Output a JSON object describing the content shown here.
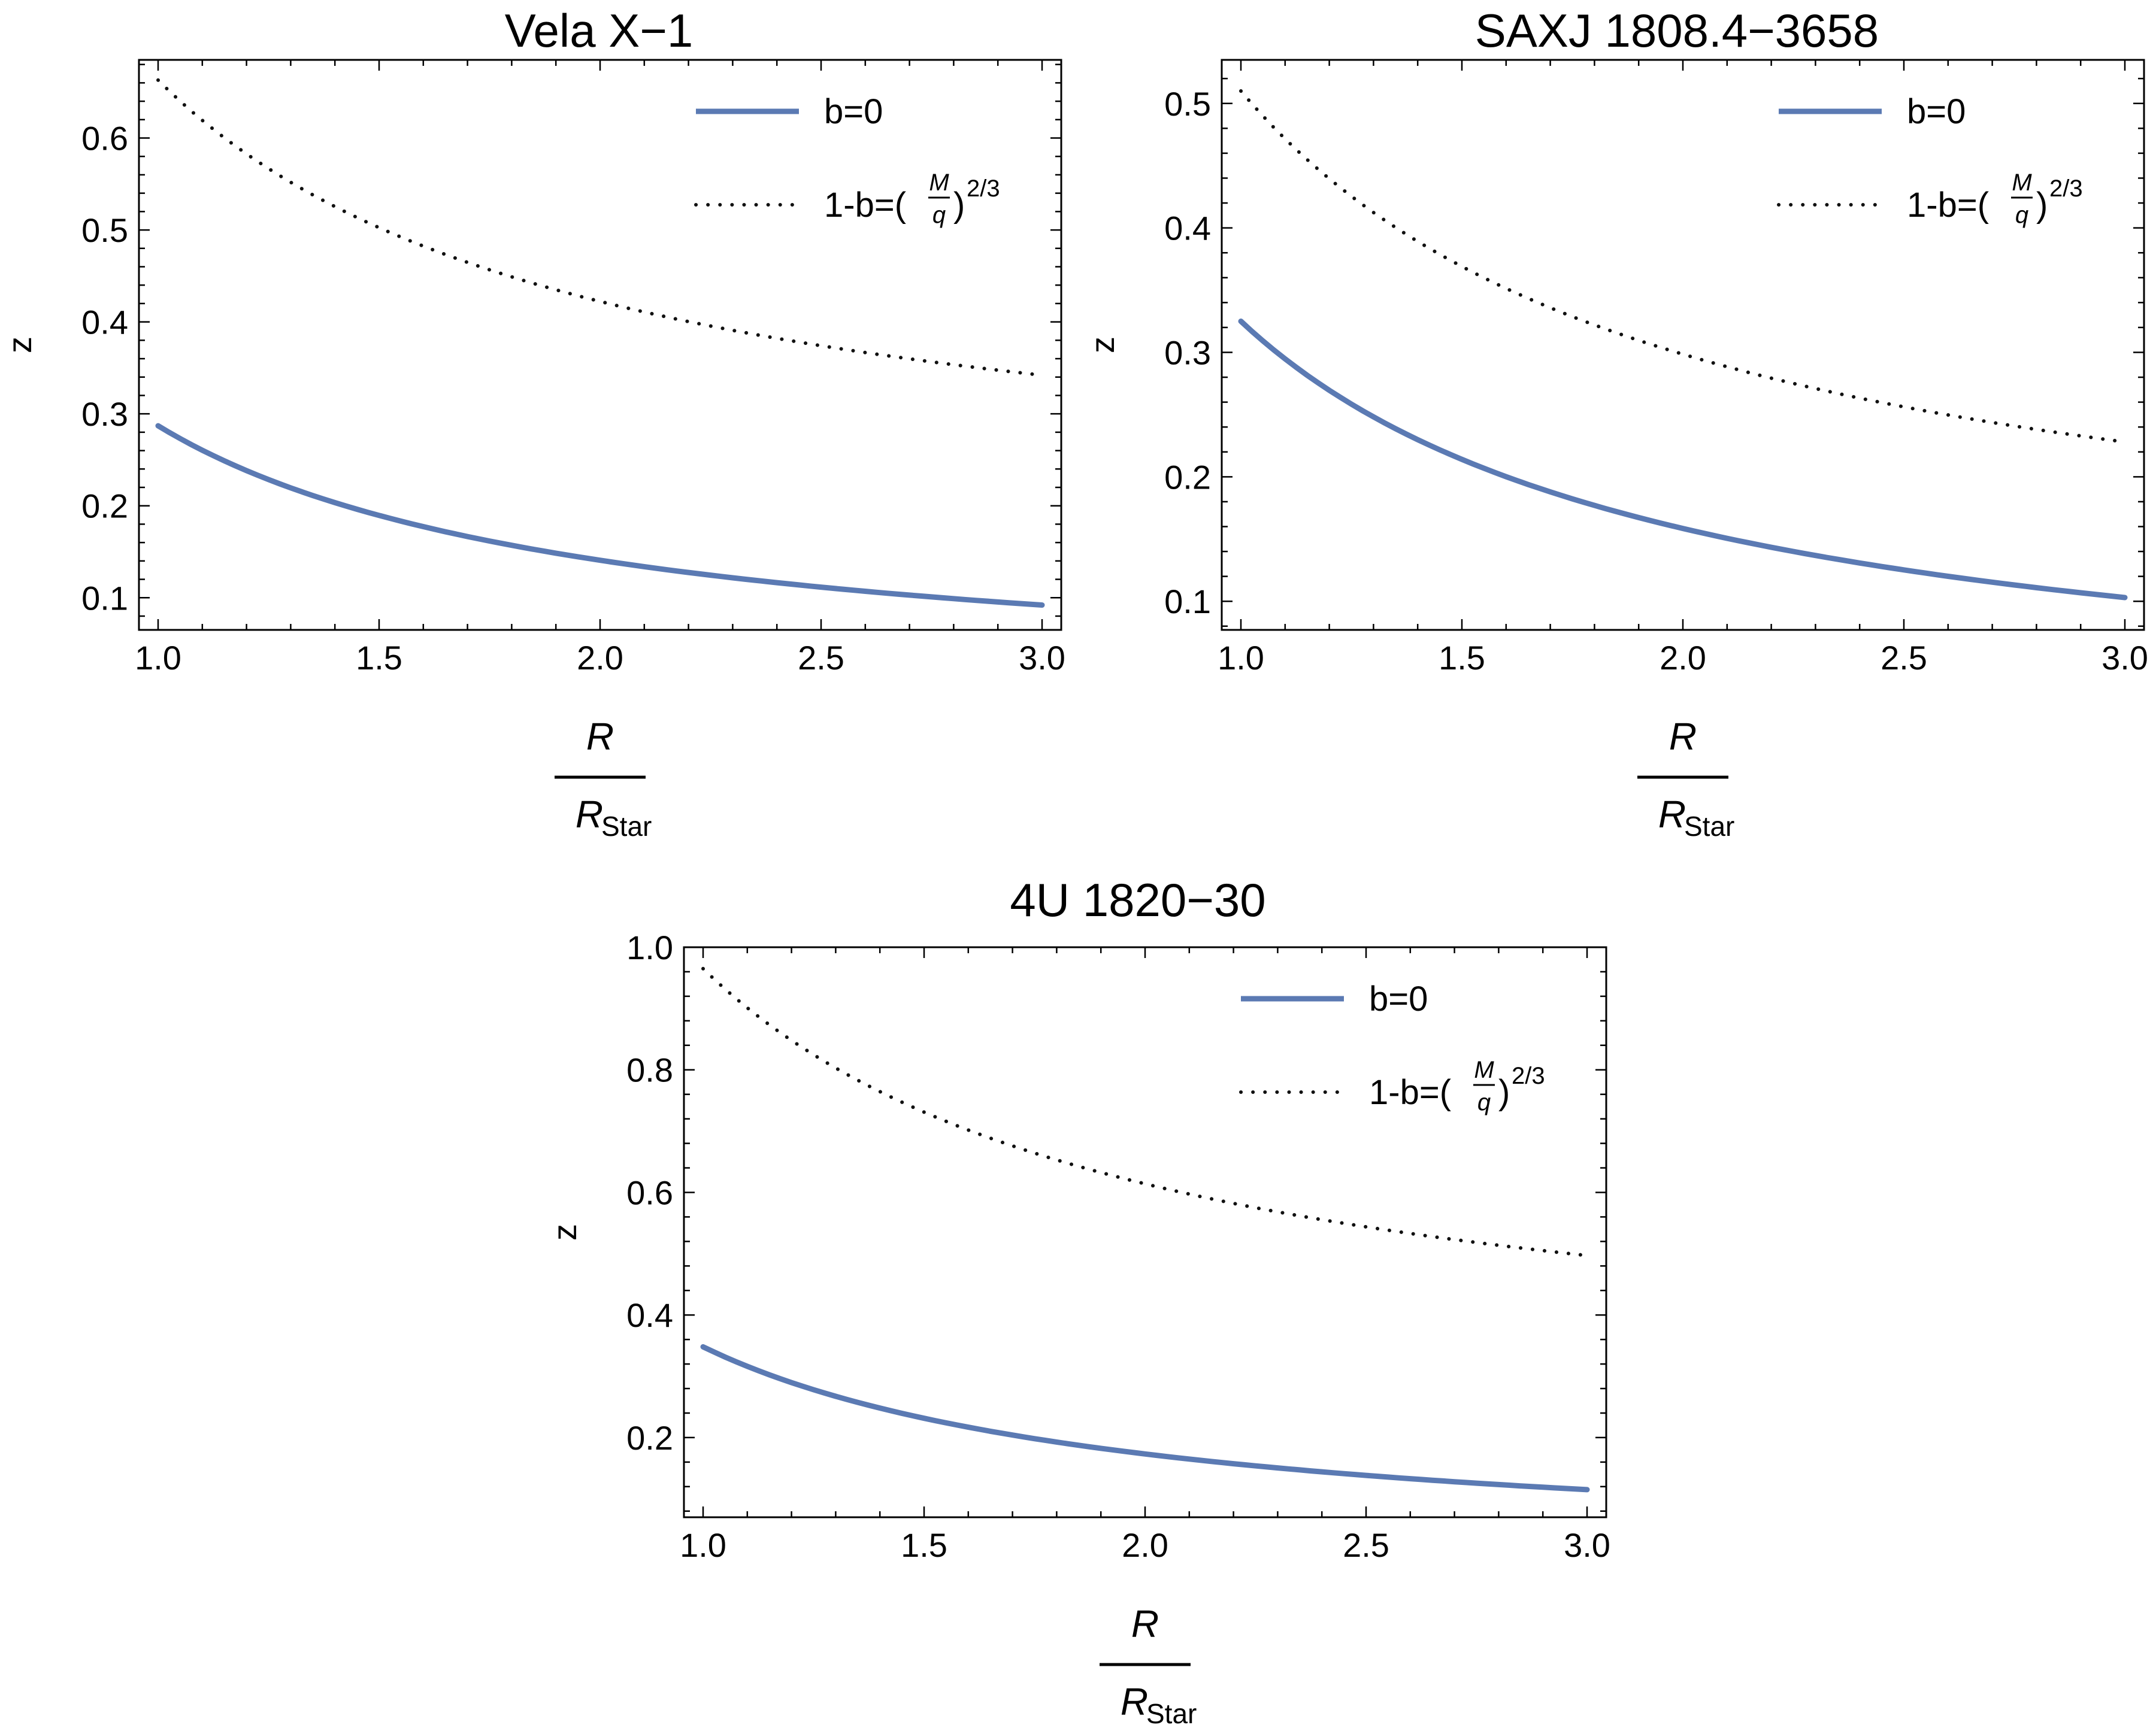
{
  "colors": {
    "solid": "#5b7ab3",
    "dotted": "#111111",
    "axis": "#000000"
  },
  "legend": {
    "solid_label": "b=0",
    "dotted_prefix": "1-b=(",
    "frac_num": "M",
    "frac_den": "q",
    "dotted_suffix": ")",
    "exponent": "2/3"
  },
  "xlabel": {
    "numerator": "R",
    "denominator": "R",
    "subscript": "Star"
  },
  "ylabel": "z",
  "chart_data": [
    {
      "type": "line",
      "title": "Vela X−1",
      "xlim": [
        1.0,
        3.0
      ],
      "ylim": [
        0.065,
        0.685
      ],
      "xticks": [
        "1.0",
        "1.5",
        "2.0",
        "2.5",
        "3.0"
      ],
      "yticks": [
        "0.1",
        "0.2",
        "0.3",
        "0.4",
        "0.5",
        "0.6"
      ],
      "legend_position": "top-right",
      "x": [
        1.0,
        1.5,
        2.0,
        2.5,
        3.0
      ],
      "series": [
        {
          "label": "b=0",
          "style": "solid",
          "y": [
            0.287,
            0.19,
            0.143,
            0.113,
            0.092
          ]
        },
        {
          "label": "1-b=(M/q)^(2/3)",
          "style": "dotted",
          "y": [
            0.663,
            0.498,
            0.418,
            0.372,
            0.342
          ]
        }
      ]
    },
    {
      "type": "line",
      "title": "SAXJ 1808.4−3658",
      "xlim": [
        1.0,
        3.0
      ],
      "ylim": [
        0.077,
        0.535
      ],
      "xticks": [
        "1.0",
        "1.5",
        "2.0",
        "2.5",
        "3.0"
      ],
      "yticks": [
        "0.1",
        "0.2",
        "0.3",
        "0.4",
        "0.5"
      ],
      "legend_position": "top-right",
      "x": [
        1.0,
        1.5,
        2.0,
        2.5,
        3.0
      ],
      "series": [
        {
          "label": "b=0",
          "style": "solid",
          "y": [
            0.325,
            0.21,
            0.155,
            0.124,
            0.103
          ]
        },
        {
          "label": "1-b=(M/q)^(2/3)",
          "style": "dotted",
          "y": [
            0.51,
            0.365,
            0.293,
            0.253,
            0.228
          ]
        }
      ]
    },
    {
      "type": "line",
      "title": "4U 1820−30",
      "xlim": [
        1.0,
        3.0
      ],
      "ylim": [
        0.07,
        1.0
      ],
      "xticks": [
        "1.0",
        "1.5",
        "2.0",
        "2.5",
        "3.0"
      ],
      "yticks": [
        "0.2",
        "0.4",
        "0.6",
        "0.8",
        "1.0"
      ],
      "legend_position": "top-right",
      "x": [
        1.0,
        1.5,
        2.0,
        2.5,
        3.0
      ],
      "series": [
        {
          "label": "b=0",
          "style": "solid",
          "y": [
            0.348,
            0.23,
            0.172,
            0.138,
            0.115
          ]
        },
        {
          "label": "1-b=(M/q)^(2/3)",
          "style": "dotted",
          "y": [
            0.965,
            0.713,
            0.605,
            0.543,
            0.497
          ]
        }
      ]
    }
  ]
}
